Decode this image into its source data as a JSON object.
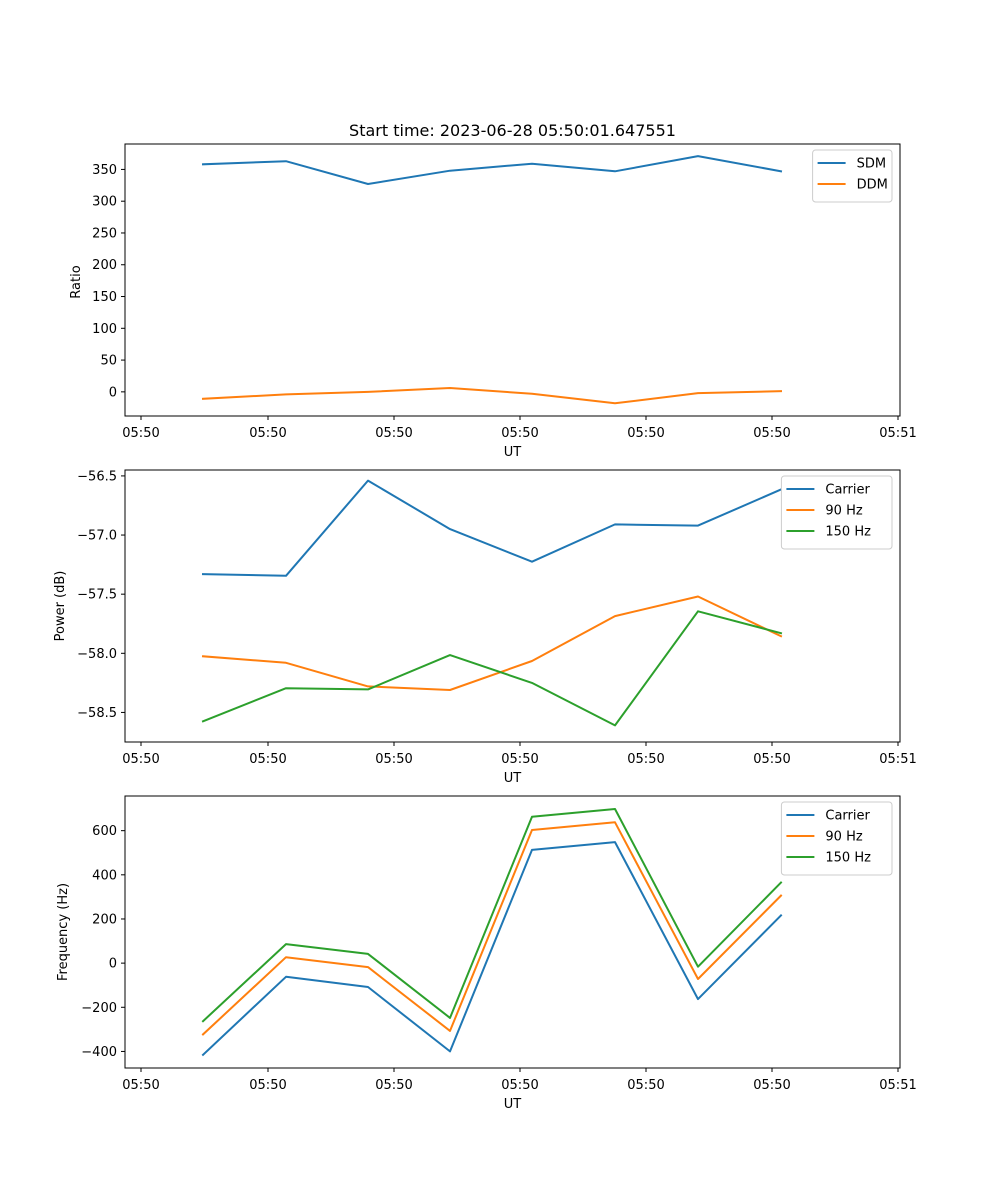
{
  "chart_data": [
    {
      "type": "line",
      "title": "Start time: 2023-06-28 05:50:01.647551",
      "xlabel": "UT",
      "ylabel": "Ratio",
      "x_tick_labels": [
        "05:50",
        "05:50",
        "05:50",
        "05:50",
        "05:50",
        "05:50",
        "05:51"
      ],
      "y_ticks": [
        0,
        50,
        100,
        150,
        200,
        250,
        300,
        350
      ],
      "ylim": [
        -38,
        390
      ],
      "legend_position": "upper right",
      "series": [
        {
          "name": "SDM",
          "color": "#1f77b4",
          "values": [
            358,
            363,
            327,
            348,
            359,
            347,
            371,
            347
          ]
        },
        {
          "name": "DDM",
          "color": "#ff7f0e",
          "values": [
            -11,
            -4,
            0,
            6,
            -3,
            -18,
            -2,
            1
          ]
        }
      ]
    },
    {
      "type": "line",
      "title": "",
      "xlabel": "UT",
      "ylabel": "Power (dB)",
      "x_tick_labels": [
        "05:50",
        "05:50",
        "05:50",
        "05:50",
        "05:50",
        "05:50",
        "05:51"
      ],
      "y_ticks": [
        -58.5,
        -58.0,
        -57.5,
        -57.0,
        -56.5
      ],
      "y_tick_labels": [
        "−58.5",
        "−58.0",
        "−57.5",
        "−57.0",
        "−56.5"
      ],
      "ylim": [
        -58.75,
        -56.45
      ],
      "legend_position": "upper right",
      "series": [
        {
          "name": "Carrier",
          "color": "#1f77b4",
          "values": [
            -57.33,
            -57.345,
            -56.54,
            -56.95,
            -57.225,
            -56.91,
            -56.92,
            -56.615
          ]
        },
        {
          "name": "90 Hz",
          "color": "#ff7f0e",
          "values": [
            -58.025,
            -58.08,
            -58.28,
            -58.31,
            -58.065,
            -57.685,
            -57.52,
            -57.855
          ]
        },
        {
          "name": "150 Hz",
          "color": "#2ca02c",
          "values": [
            -58.575,
            -58.295,
            -58.305,
            -58.015,
            -58.25,
            -58.61,
            -57.645,
            -57.83
          ]
        }
      ]
    },
    {
      "type": "line",
      "title": "",
      "xlabel": "UT",
      "ylabel": "Frequency (Hz)",
      "x_tick_labels": [
        "05:50",
        "05:50",
        "05:50",
        "05:50",
        "05:50",
        "05:50",
        "05:51"
      ],
      "y_ticks": [
        -400,
        -200,
        0,
        200,
        400,
        600
      ],
      "y_tick_labels": [
        "−400",
        "−200",
        "0",
        "200",
        "400",
        "600"
      ],
      "ylim": [
        -475,
        757
      ],
      "legend_position": "upper right",
      "series": [
        {
          "name": "Carrier",
          "color": "#1f77b4",
          "values": [
            -415,
            -62,
            -108,
            -400,
            513,
            548,
            -163,
            216
          ]
        },
        {
          "name": "90 Hz",
          "color": "#ff7f0e",
          "values": [
            -323,
            27,
            -18,
            -307,
            603,
            638,
            -72,
            306
          ]
        },
        {
          "name": "150 Hz",
          "color": "#2ca02c",
          "values": [
            -263,
            86,
            42,
            -248,
            663,
            698,
            -16,
            365
          ]
        }
      ]
    }
  ]
}
